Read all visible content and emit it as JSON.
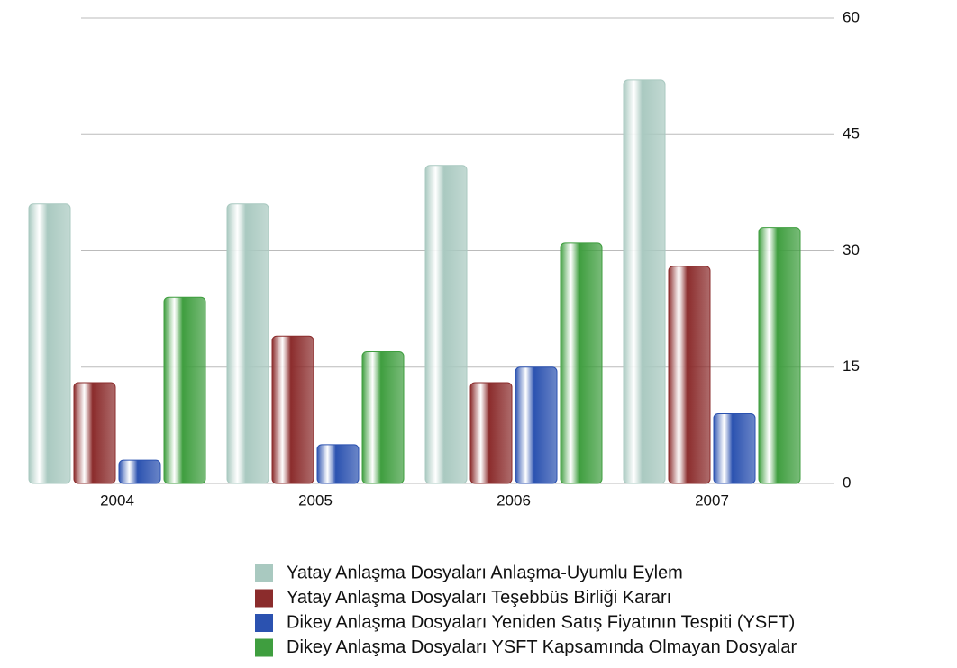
{
  "chart_data": {
    "type": "bar",
    "categories": [
      "2004",
      "2005",
      "2006",
      "2007"
    ],
    "series": [
      {
        "name": "Yatay Anlaşma Dosyaları Anlaşma-Uyumlu Eylem",
        "color": "#a9c9c0",
        "values": [
          36,
          36,
          41,
          52
        ]
      },
      {
        "name": "Yatay Anlaşma Dosyaları Teşebbüs Birliği Kararı",
        "color": "#8b2c2c",
        "values": [
          13,
          19,
          13,
          28
        ]
      },
      {
        "name": "Dikey Anlaşma Dosyaları Yeniden Satış Fiyatının Tespiti (YSFT)",
        "color": "#2b52b0",
        "values": [
          3,
          5,
          15,
          9
        ]
      },
      {
        "name": "Dikey Anlaşma Dosyaları YSFT Kapsamında Olmayan Dosyalar",
        "color": "#3f9e3f",
        "values": [
          24,
          17,
          31,
          33
        ]
      }
    ],
    "ylim": [
      0,
      60
    ],
    "yticks": [
      0,
      15,
      30,
      45,
      60
    ],
    "grid": true
  }
}
